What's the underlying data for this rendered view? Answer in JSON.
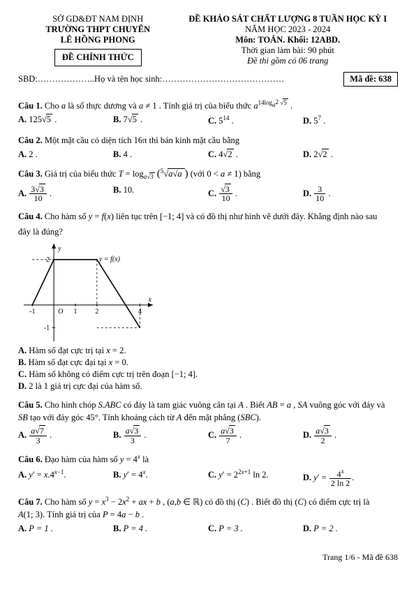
{
  "header": {
    "left_line1": "SỞ GD&ĐT NAM ĐỊNH",
    "left_line2": "TRƯỜNG THPT CHUYÊN",
    "left_line3": "LÊ HỒNG PHONG",
    "official": "ĐỀ CHÍNH THỨC",
    "right_line1": "ĐỀ KHẢO SÁT CHẤT LƯỢNG 8 TUẦN HỌC KỲ I",
    "right_line2": "NĂM HỌC 2023 - 2024",
    "right_line3": "Môn: TOÁN. Khối: 12ABD.",
    "right_line4": "Thời gian làm bài: 90 phút",
    "right_line5": "Đề thi gồm có 06 trang"
  },
  "sbd": {
    "label_sbd": "SBD:",
    "label_name": "Họ và tên học sinh:",
    "made": "Mã đề: 638"
  },
  "q1": {
    "label": "Câu 1.",
    "text_a": "Cho ",
    "text_b": " là số thực dương và ",
    "text_c": ". Tính giá trị của biểu thức ",
    "A_lbl": "A.",
    "A_v": "125",
    "B_lbl": "B.",
    "B_v": "7",
    "C_lbl": "C.",
    "C_v": "5",
    "C_exp": "14",
    "D_lbl": "D.",
    "D_v": "5",
    "D_exp": "7"
  },
  "q2": {
    "label": "Câu 2.",
    "text": "Một mặt cầu có diện tích 16π  thì bán kính mặt cầu bằng",
    "A_lbl": "A.",
    "A_v": "2 .",
    "B_lbl": "B.",
    "B_v": "4 .",
    "C_lbl": "C.",
    "C_v": "4",
    "D_lbl": "D.",
    "D_v": "2"
  },
  "q3": {
    "label": "Câu 3.",
    "text_a": "Giá trị của biểu thức ",
    "text_b": "  (với ",
    "text_c": ") bằng",
    "A_lbl": "A.",
    "B_lbl": "B.",
    "B_v": "10.",
    "C_lbl": "C.",
    "D_lbl": "D."
  },
  "q4": {
    "label": "Câu 4.",
    "text_a": "Cho hàm số ",
    "text_b": " liên tục trên ",
    "text_c": " và có đồ thị như hình vẽ dưới đây. Khẳng định nào sau",
    "text_d": "đây là đúng?",
    "A": "A. Hàm số đạt cực trị tại  x = 2.",
    "B": "B. Hàm số đạt cực đại tại  x = 0.",
    "C": "C. Hàm số không có điểm cực trị trên đoạn [−1; 4].",
    "D": "D. 2 là 1 giá trị cực đại của hàm số."
  },
  "graph": {
    "width": 185,
    "height": 140,
    "xRange": [
      -1.4,
      4.6
    ],
    "yRange": [
      -1.6,
      2.7
    ],
    "xTicks": [
      -1,
      1,
      2,
      4
    ],
    "yTicks": [
      -1,
      2
    ],
    "fn_label": "y = f(x)",
    "axis_x": "x",
    "axis_y": "y",
    "curve": [
      [
        -1,
        0
      ],
      [
        0,
        2
      ],
      [
        2,
        2
      ],
      [
        4,
        -1
      ]
    ],
    "dashed": [
      [
        [
          -1,
          2
        ],
        [
          0,
          2
        ]
      ],
      [
        [
          2,
          2
        ],
        [
          2,
          0
        ]
      ],
      [
        [
          2,
          -1
        ],
        [
          4,
          -1
        ]
      ],
      [
        [
          4,
          -1
        ],
        [
          4,
          0
        ]
      ]
    ],
    "origin": "O"
  },
  "q5": {
    "label": "Câu 5.",
    "text_a": "Cho hình chóp ",
    "sabc": "S.ABC",
    "text_b": " có đáy là tam giác vuông cân tại ",
    "text_c": ". Biết ",
    "text_d": ", ",
    "text_e": " vuông góc với đáy và",
    "text_f": " tạo với đáy góc 45°. Tính khoảng cách từ ",
    "text_g": " đến mặt phẳng ",
    "A_lbl": "A.",
    "B_lbl": "B.",
    "C_lbl": "C.",
    "D_lbl": "D."
  },
  "q6": {
    "label": "Câu 6.",
    "text_a": "Đạo hàm của hàm số ",
    "text_b": " là",
    "A_lbl": "A.",
    "B_lbl": "B.",
    "C_lbl": "C.",
    "D_lbl": "D."
  },
  "q7": {
    "label": "Câu 7.",
    "text_a": "Cho hàm số ",
    "text_b": " có đồ thị ",
    "text_c": ". Biết đồ thị ",
    "text_d": " có điểm cực trị là",
    "text_e": ". Tính giá trị của ",
    "A_lbl": "A.",
    "A_v": "P = 1 .",
    "B_lbl": "B.",
    "B_v": "P = 4 .",
    "C_lbl": "C.",
    "C_v": "P = 3 .",
    "D_lbl": "D.",
    "D_v": "P = 2 ."
  },
  "footer": "Trang 1/6 - Mã đề 638"
}
